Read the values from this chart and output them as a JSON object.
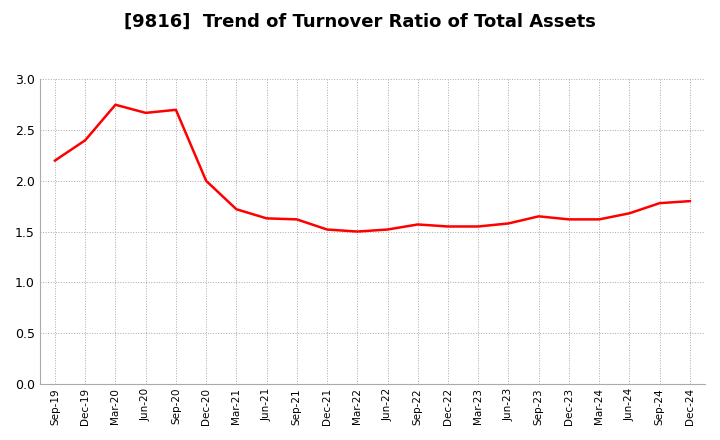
{
  "title": "[9816]  Trend of Turnover Ratio of Total Assets",
  "x_labels": [
    "Sep-19",
    "Dec-19",
    "Mar-20",
    "Jun-20",
    "Sep-20",
    "Dec-20",
    "Mar-21",
    "Jun-21",
    "Sep-21",
    "Dec-21",
    "Mar-22",
    "Jun-22",
    "Sep-22",
    "Dec-22",
    "Mar-23",
    "Jun-23",
    "Sep-23",
    "Dec-23",
    "Mar-24",
    "Jun-24",
    "Sep-24",
    "Dec-24"
  ],
  "y_values": [
    2.2,
    2.4,
    2.75,
    2.67,
    2.7,
    2.0,
    1.72,
    1.63,
    1.62,
    1.52,
    1.5,
    1.52,
    1.57,
    1.55,
    1.55,
    1.58,
    1.65,
    1.62,
    1.62,
    1.68,
    1.78,
    1.8
  ],
  "line_color": "#FF0000",
  "ylim": [
    0.0,
    3.0
  ],
  "yticks": [
    0.0,
    0.5,
    1.0,
    1.5,
    2.0,
    2.5,
    3.0
  ],
  "background_color": "#FFFFFF",
  "grid_color": "#AAAAAA",
  "title_fontsize": 13,
  "line_width": 1.8
}
